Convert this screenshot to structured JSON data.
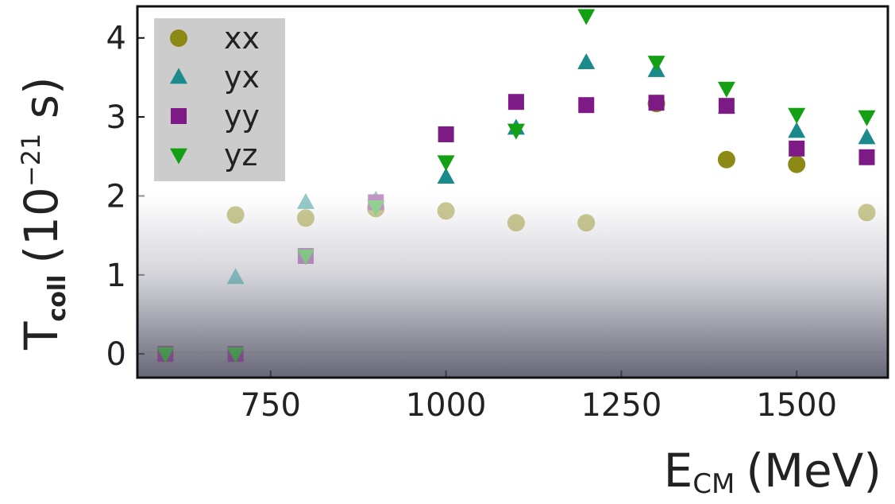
{
  "chart_data": {
    "type": "scatter",
    "xlabel": {
      "main": "E",
      "sub": "CM",
      "unit": "(MeV)"
    },
    "ylabel": {
      "main": "T",
      "sub": "coll",
      "unit_pre": "(10",
      "unit_exp": "−21",
      "unit_post": " s)"
    },
    "xlim": [
      560,
      1630
    ],
    "ylim": [
      -0.3,
      4.4
    ],
    "x_ticks": [
      750,
      1000,
      1250,
      1500
    ],
    "y_ticks": [
      0,
      1,
      2,
      3,
      4
    ],
    "grid": false,
    "legend_position": "top-left",
    "series": [
      {
        "name": "xx",
        "marker": "circle",
        "color": "#8c8a14",
        "x": [
          600,
          700,
          800,
          900,
          1000,
          1100,
          1200,
          1300,
          1400,
          1500,
          1600
        ],
        "y": [
          0,
          1.76,
          1.72,
          1.84,
          1.81,
          1.66,
          1.66,
          3.17,
          2.46,
          2.4,
          1.79
        ]
      },
      {
        "name": "yx",
        "marker": "triangle-up",
        "color": "#1a8a8a",
        "x": [
          600,
          700,
          800,
          900,
          1000,
          1100,
          1200,
          1300,
          1400,
          1500,
          1600
        ],
        "y": [
          0,
          0.97,
          1.92,
          1.95,
          2.24,
          2.86,
          3.69,
          3.59,
          3.13,
          2.82,
          2.74
        ]
      },
      {
        "name": "yy",
        "marker": "square",
        "color": "#7e1a85",
        "x": [
          600,
          700,
          800,
          900,
          1000,
          1100,
          1200,
          1300,
          1400,
          1500,
          1600
        ],
        "y": [
          0,
          0,
          1.24,
          1.92,
          2.78,
          3.19,
          3.15,
          3.18,
          3.14,
          2.6,
          2.49
        ]
      },
      {
        "name": "yz",
        "marker": "triangle-down",
        "color": "#14a014",
        "x": [
          600,
          700,
          800,
          900,
          1000,
          1100,
          1200,
          1300,
          1400,
          1500,
          1600
        ],
        "y": [
          0,
          0,
          1.24,
          1.86,
          2.43,
          2.83,
          4.28,
          3.69,
          3.36,
          3.03,
          3.0
        ]
      }
    ]
  }
}
